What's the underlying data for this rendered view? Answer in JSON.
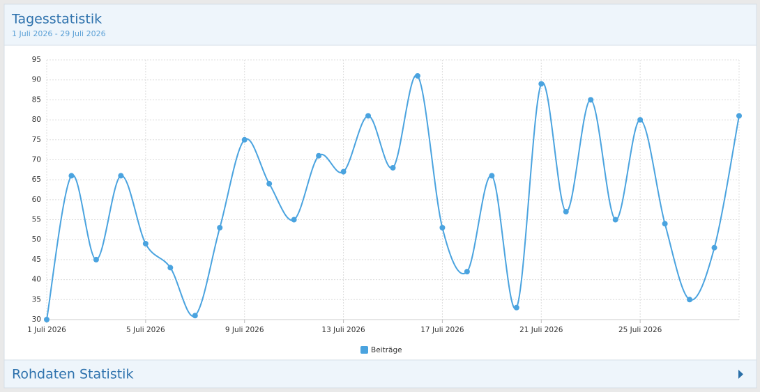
{
  "header": {
    "title": "Tagesstatistik",
    "subtitle": "1 Juli 2026 - 29 Juli 2026"
  },
  "chart_data": {
    "type": "line",
    "categories": [
      "1 Juli 2026",
      null,
      null,
      null,
      "5 Juli 2026",
      null,
      null,
      null,
      "9 Juli 2026",
      null,
      null,
      null,
      "13 Juli 2026",
      null,
      null,
      null,
      "17 Juli 2026",
      null,
      null,
      null,
      "21 Juli 2026",
      null,
      null,
      null,
      "25 Juli 2026",
      null,
      null,
      null,
      null
    ],
    "series": [
      {
        "name": "Beiträge",
        "color": "#4aa3df",
        "values": [
          30,
          66,
          45,
          66,
          49,
          43,
          31,
          53,
          75,
          64,
          55,
          71,
          67,
          81,
          68,
          91,
          53,
          42,
          66,
          33,
          89,
          57,
          85,
          55,
          80,
          54,
          35,
          48,
          81
        ]
      }
    ],
    "ylim": [
      30,
      95
    ],
    "yticks": [
      30,
      35,
      40,
      45,
      50,
      55,
      60,
      65,
      70,
      75,
      80,
      85,
      90,
      95
    ],
    "grid": true,
    "legend": "bottom"
  },
  "footer": {
    "title": "Rohdaten Statistik"
  }
}
